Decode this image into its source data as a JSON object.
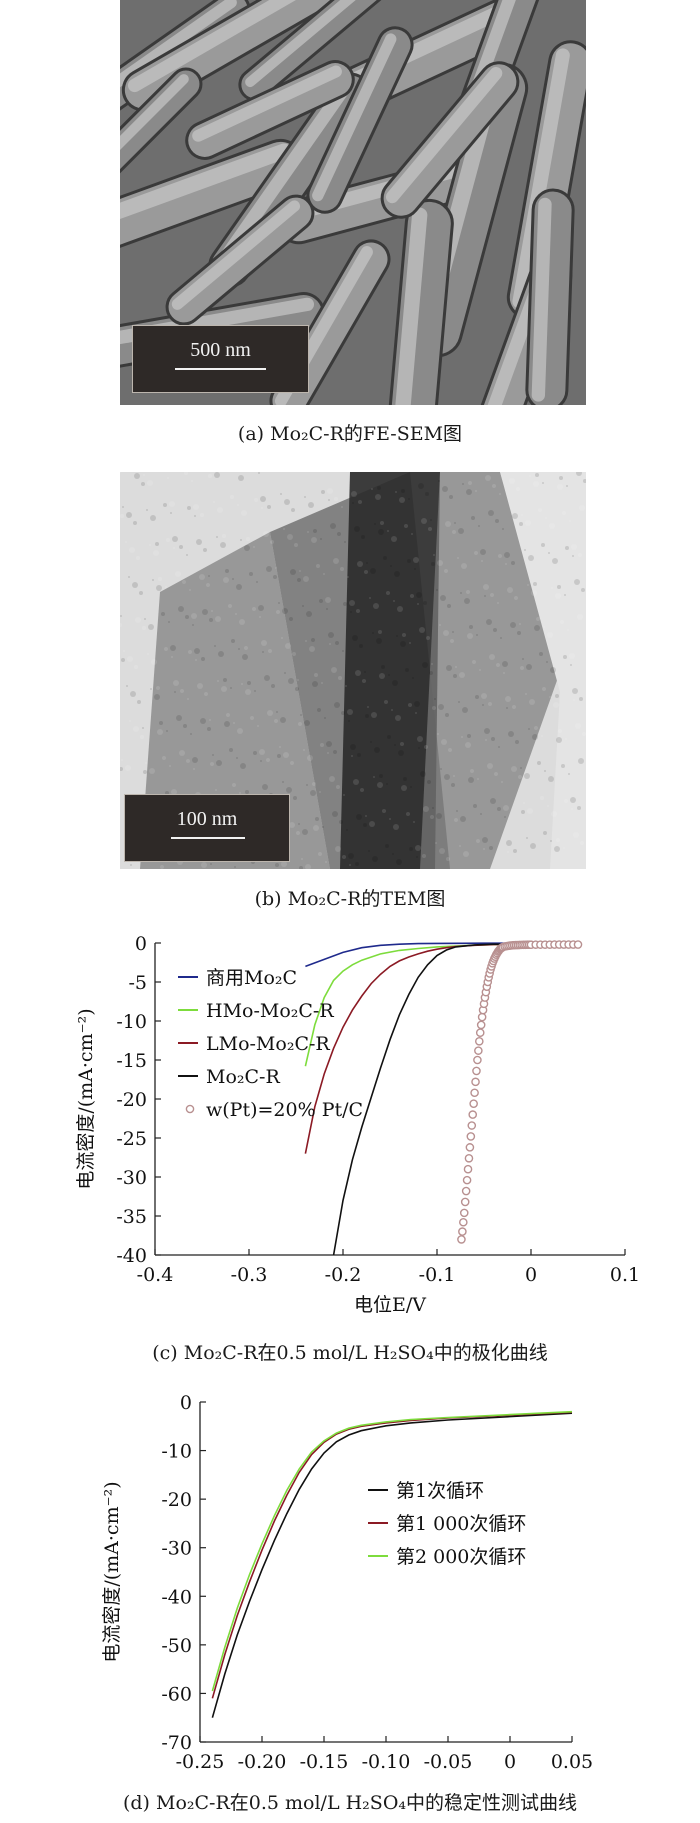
{
  "panel_a": {
    "scale_label": "500 nm",
    "caption": "(a) Mo₂C-R的FE-SEM图"
  },
  "panel_b": {
    "scale_label": "100 nm",
    "caption": "(b) Mo₂C-R的TEM图"
  },
  "colors": {
    "commercial": "#1f2a8c",
    "hmo": "#7ddc3c",
    "lmo": "#8b1a24",
    "mo2c_r": "#111111",
    "pt": "#b89090",
    "cycle1": "#111111",
    "cycle1000": "#8b1a24",
    "cycle2000": "#7ddc3c"
  },
  "chart_data": [
    {
      "type": "line",
      "panel": "c",
      "caption": "(c) Mo₂C-R在0.5 mol/L H₂SO₄中的极化曲线",
      "xlabel": "电位E/V",
      "ylabel": "电流密度/(mA·cm⁻²)",
      "xlim": [
        -0.4,
        0.1
      ],
      "ylim": [
        -40,
        0
      ],
      "xticks": [
        -0.4,
        -0.3,
        -0.2,
        -0.1,
        0,
        0.1
      ],
      "xtick_labels": [
        "-0.4",
        "-0.3",
        "-0.2",
        "-0.1",
        "0",
        "0.1"
      ],
      "yticks": [
        0,
        -5,
        -10,
        -15,
        -20,
        -25,
        -30,
        -35,
        -40
      ],
      "ytick_labels": [
        "0",
        "-5",
        "-10",
        "-15",
        "-20",
        "-25",
        "-30",
        "-35",
        "-40"
      ],
      "legend_position": "top-left",
      "grid": false,
      "series": [
        {
          "name": "商用Mo₂C",
          "style": "line",
          "color": "#1f2a8c",
          "x": [
            -0.24,
            -0.22,
            -0.2,
            -0.18,
            -0.16,
            -0.14,
            -0.12,
            -0.1,
            -0.05,
            0.05
          ],
          "y": [
            -3.0,
            -2.1,
            -1.2,
            -0.6,
            -0.3,
            -0.15,
            -0.08,
            -0.05,
            -0.03,
            -0.02
          ]
        },
        {
          "name": "HMo-Mo₂C-R",
          "style": "line",
          "color": "#7ddc3c",
          "x": [
            -0.24,
            -0.23,
            -0.22,
            -0.21,
            -0.2,
            -0.19,
            -0.18,
            -0.16,
            -0.14,
            -0.12,
            -0.1,
            -0.08,
            -0.06,
            -0.04,
            0.05
          ],
          "y": [
            -15.8,
            -10.5,
            -7.0,
            -4.8,
            -3.6,
            -2.8,
            -2.2,
            -1.4,
            -0.95,
            -0.7,
            -0.5,
            -0.38,
            -0.28,
            -0.2,
            -0.1
          ]
        },
        {
          "name": "LMo-Mo₂C-R",
          "style": "line",
          "color": "#8b1a24",
          "x": [
            -0.24,
            -0.23,
            -0.22,
            -0.21,
            -0.2,
            -0.19,
            -0.18,
            -0.17,
            -0.16,
            -0.15,
            -0.14,
            -0.13,
            -0.12,
            -0.11,
            -0.1,
            -0.09,
            -0.08,
            -0.06,
            -0.04,
            0.05
          ],
          "y": [
            -27.0,
            -21.0,
            -16.8,
            -13.5,
            -10.8,
            -8.6,
            -6.8,
            -5.2,
            -4.0,
            -3.0,
            -2.3,
            -1.8,
            -1.4,
            -1.05,
            -0.8,
            -0.6,
            -0.45,
            -0.3,
            -0.2,
            -0.1
          ]
        },
        {
          "name": "Mo₂C-R",
          "style": "line",
          "color": "#111111",
          "x": [
            -0.21,
            -0.2,
            -0.19,
            -0.18,
            -0.17,
            -0.16,
            -0.15,
            -0.14,
            -0.13,
            -0.12,
            -0.11,
            -0.1,
            -0.09,
            -0.08,
            -0.06,
            -0.04,
            0.05
          ],
          "y": [
            -40.0,
            -33.0,
            -27.8,
            -23.6,
            -19.8,
            -16.0,
            -12.4,
            -9.2,
            -6.6,
            -4.4,
            -2.8,
            -1.6,
            -0.9,
            -0.5,
            -0.25,
            -0.15,
            -0.1
          ]
        },
        {
          "name": "w(Pt)=20% Pt/C",
          "style": "markers",
          "color": "#b89090",
          "x": [
            -0.074,
            -0.073,
            -0.072,
            -0.071,
            -0.07,
            -0.069,
            -0.068,
            -0.067,
            -0.066,
            -0.065,
            -0.064,
            -0.063,
            -0.062,
            -0.061,
            -0.06,
            -0.059,
            -0.058,
            -0.057,
            -0.056,
            -0.055,
            -0.054,
            -0.053,
            -0.052,
            -0.051,
            -0.05,
            -0.049,
            -0.048,
            -0.047,
            -0.046,
            -0.045,
            -0.044,
            -0.043,
            -0.042,
            -0.041,
            -0.04,
            -0.039,
            -0.038,
            -0.037,
            -0.036,
            -0.035,
            -0.034,
            -0.033,
            -0.032,
            -0.031,
            -0.03,
            -0.028,
            -0.026,
            -0.024,
            -0.022,
            -0.02,
            -0.018,
            -0.016,
            -0.014,
            -0.012,
            -0.01,
            -0.008,
            -0.006,
            -0.004,
            -0.002,
            0.0,
            0.005,
            0.01,
            0.015,
            0.02,
            0.025,
            0.03,
            0.035,
            0.04,
            0.045,
            0.05
          ],
          "y": [
            -38.0,
            -37.0,
            -35.8,
            -34.6,
            -33.2,
            -31.8,
            -30.4,
            -29.0,
            -27.6,
            -26.2,
            -24.8,
            -23.4,
            -22.0,
            -20.6,
            -19.2,
            -17.8,
            -16.4,
            -15.0,
            -13.8,
            -12.6,
            -11.5,
            -10.5,
            -9.5,
            -8.6,
            -7.8,
            -7.0,
            -6.3,
            -5.6,
            -5.0,
            -4.4,
            -3.9,
            -3.4,
            -3.0,
            -2.6,
            -2.3,
            -2.0,
            -1.75,
            -1.5,
            -1.3,
            -1.1,
            -0.95,
            -0.8,
            -0.7,
            -0.6,
            -0.52,
            -0.45,
            -0.4,
            -0.36,
            -0.33,
            -0.3,
            -0.28,
            -0.27,
            -0.26,
            -0.25,
            -0.24,
            -0.23,
            -0.23,
            -0.22,
            -0.22,
            -0.22,
            -0.21,
            -0.21,
            -0.21,
            -0.21,
            -0.2,
            -0.2,
            -0.2,
            -0.2,
            -0.2,
            -0.2
          ]
        }
      ]
    },
    {
      "type": "line",
      "panel": "d",
      "caption": "(d) Mo₂C-R在0.5 mol/L H₂SO₄中的稳定性测试曲线",
      "xlabel": "电位E/V",
      "ylabel": "电流密度/(mA·cm⁻²)",
      "xlim": [
        -0.25,
        0.05
      ],
      "ylim": [
        -70,
        0
      ],
      "xticks": [
        -0.25,
        -0.2,
        -0.15,
        -0.1,
        -0.05,
        0,
        0.05
      ],
      "xtick_labels": [
        "-0.25",
        "-0.20",
        "-0.15",
        "-0.10",
        "-0.05",
        "0",
        "0.05"
      ],
      "yticks": [
        0,
        -10,
        -20,
        -30,
        -40,
        -50,
        -60,
        -70
      ],
      "ytick_labels": [
        "0",
        "-10",
        "-20",
        "-30",
        "-40",
        "-50",
        "-60",
        "-70"
      ],
      "legend_position": "center-right",
      "grid": false,
      "series": [
        {
          "name": "第1次循环",
          "style": "line",
          "color": "#111111",
          "x": [
            -0.24,
            -0.23,
            -0.22,
            -0.21,
            -0.2,
            -0.19,
            -0.18,
            -0.17,
            -0.16,
            -0.15,
            -0.14,
            -0.13,
            -0.12,
            -0.1,
            -0.08,
            -0.05,
            0.0,
            0.05
          ],
          "y": [
            -65.0,
            -56.0,
            -48.0,
            -41.0,
            -34.5,
            -28.5,
            -23.0,
            -18.0,
            -13.8,
            -10.5,
            -8.2,
            -6.8,
            -5.9,
            -4.9,
            -4.3,
            -3.7,
            -3.0,
            -2.3
          ]
        },
        {
          "name": "第1 000次循环",
          "style": "line",
          "color": "#8b1a24",
          "x": [
            -0.24,
            -0.23,
            -0.22,
            -0.21,
            -0.2,
            -0.19,
            -0.18,
            -0.17,
            -0.16,
            -0.15,
            -0.14,
            -0.13,
            -0.12,
            -0.1,
            -0.08,
            -0.05,
            0.0,
            0.05
          ],
          "y": [
            -61.0,
            -52.0,
            -44.0,
            -37.0,
            -30.5,
            -24.5,
            -19.2,
            -14.5,
            -10.8,
            -8.3,
            -6.6,
            -5.6,
            -5.0,
            -4.3,
            -3.8,
            -3.3,
            -2.7,
            -2.1
          ]
        },
        {
          "name": "第2 000次循环",
          "style": "line",
          "color": "#7ddc3c",
          "x": [
            -0.24,
            -0.23,
            -0.22,
            -0.21,
            -0.2,
            -0.19,
            -0.18,
            -0.17,
            -0.16,
            -0.15,
            -0.14,
            -0.13,
            -0.12,
            -0.1,
            -0.08,
            -0.05,
            0.0,
            0.05
          ],
          "y": [
            -59.5,
            -50.5,
            -42.5,
            -35.5,
            -29.2,
            -23.4,
            -18.2,
            -13.8,
            -10.3,
            -8.0,
            -6.4,
            -5.4,
            -4.8,
            -4.1,
            -3.6,
            -3.2,
            -2.6,
            -2.0
          ]
        }
      ]
    }
  ]
}
